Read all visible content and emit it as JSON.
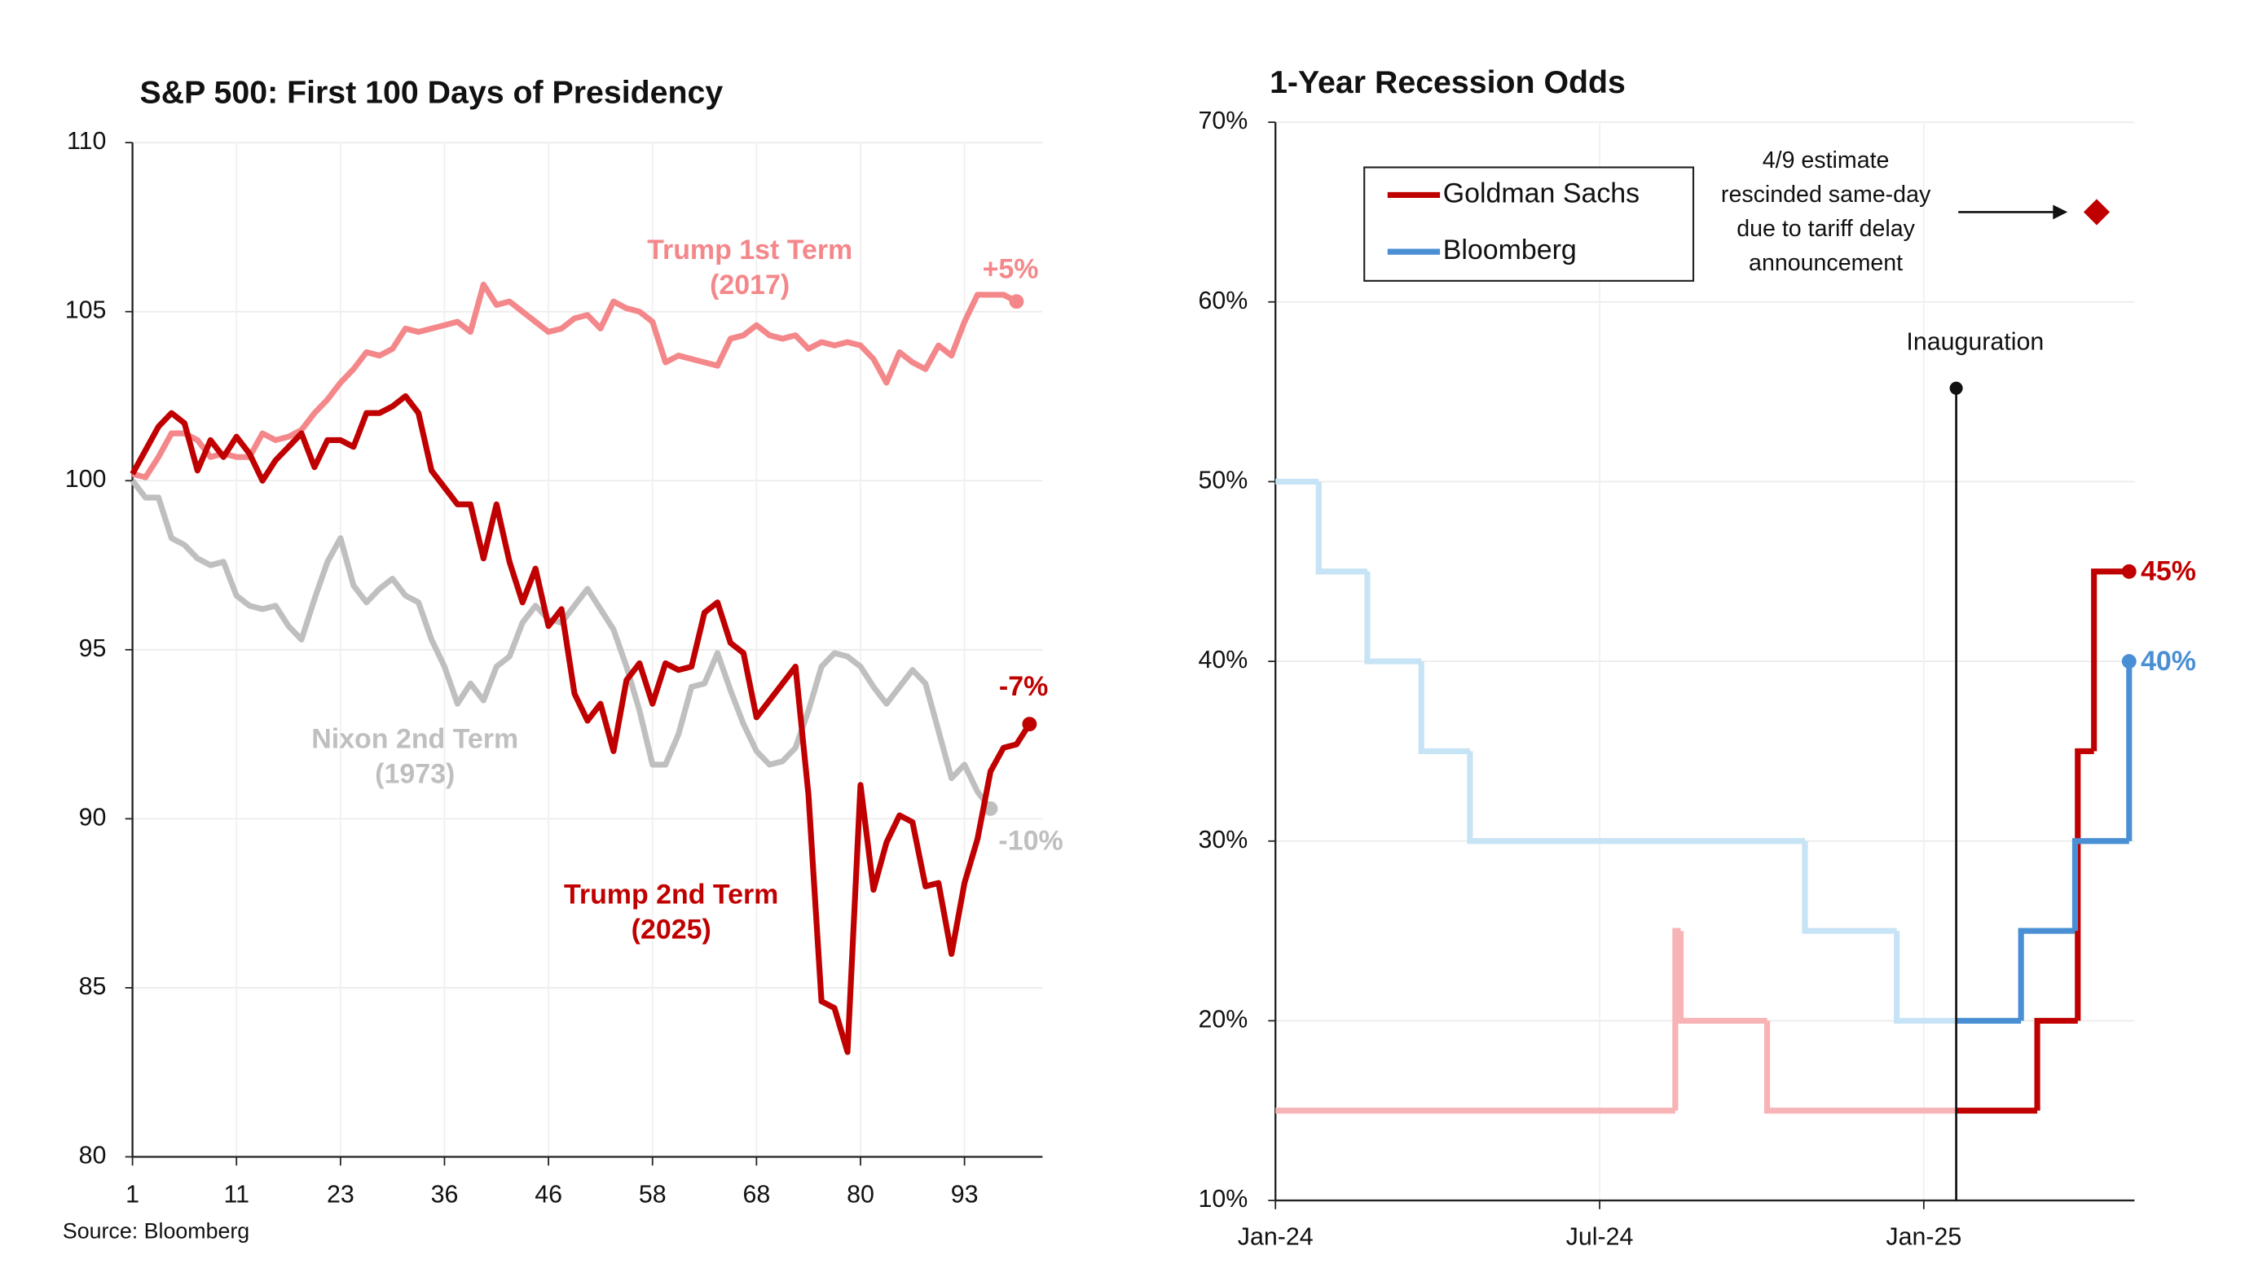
{
  "chart_data": [
    {
      "type": "line",
      "title": "S&P 500: First 100 Days of Presidency",
      "source": "Source: Bloomberg",
      "x": [
        0,
        1,
        2,
        3,
        4,
        5,
        6,
        7,
        8,
        9,
        10,
        11,
        12,
        13,
        14,
        15,
        16,
        17,
        18,
        19,
        20,
        21,
        22,
        23,
        24,
        25,
        26,
        27,
        28,
        29,
        30,
        31,
        32,
        33,
        34,
        35,
        36,
        37,
        38,
        39,
        40,
        41,
        42,
        43,
        44,
        45,
        46,
        47,
        48,
        49,
        50,
        51,
        52,
        53,
        54,
        55,
        56,
        57,
        58,
        59,
        60,
        61,
        62,
        63,
        64,
        65,
        66,
        67,
        68,
        69
      ],
      "xlim": [
        0,
        70
      ],
      "xticks": [
        {
          "value": 0,
          "label": "1"
        },
        {
          "value": 8,
          "label": "11"
        },
        {
          "value": 16,
          "label": "23"
        },
        {
          "value": 24,
          "label": "36"
        },
        {
          "value": 32,
          "label": "46"
        },
        {
          "value": 40,
          "label": "58"
        },
        {
          "value": 48,
          "label": "68"
        },
        {
          "value": 56,
          "label": "80"
        },
        {
          "value": 64,
          "label": "93"
        }
      ],
      "ylim": [
        80,
        110
      ],
      "yticks": [
        80,
        85,
        90,
        95,
        100,
        105,
        110
      ],
      "grid": true,
      "series": [
        {
          "name": "Trump 1st Term",
          "period": "(2017)",
          "color": "#f4878a",
          "end_label": "+5%",
          "values": [
            100.2,
            100.1,
            100.7,
            101.4,
            101.4,
            101.2,
            100.7,
            100.8,
            100.7,
            100.7,
            101.4,
            101.2,
            101.3,
            101.5,
            102.0,
            102.4,
            102.9,
            103.3,
            103.8,
            103.7,
            103.9,
            104.5,
            104.4,
            104.5,
            104.6,
            104.7,
            104.4,
            105.8,
            105.2,
            105.3,
            105.0,
            104.7,
            104.4,
            104.5,
            104.8,
            104.9,
            104.5,
            105.3,
            105.1,
            105.0,
            104.7,
            103.5,
            103.7,
            103.6,
            103.5,
            103.4,
            104.2,
            104.3,
            104.6,
            104.3,
            104.2,
            104.3,
            103.9,
            104.1,
            104.0,
            104.1,
            104.0,
            103.6,
            102.9,
            103.8,
            103.5,
            103.3,
            104.0,
            103.7,
            104.7,
            105.5,
            105.5,
            105.5,
            105.3,
            null
          ]
        },
        {
          "name": "Nixon 2nd Term",
          "period": "(1973)",
          "color": "#bfbfbf",
          "end_label": "-10%",
          "values": [
            100.0,
            99.5,
            99.5,
            98.3,
            98.1,
            97.7,
            97.5,
            97.6,
            96.6,
            96.3,
            96.2,
            96.3,
            95.7,
            95.3,
            96.5,
            97.6,
            98.3,
            96.9,
            96.4,
            96.8,
            97.1,
            96.6,
            96.4,
            95.3,
            94.5,
            93.4,
            94.0,
            93.5,
            94.5,
            94.8,
            95.8,
            96.3,
            95.9,
            95.8,
            96.3,
            96.8,
            96.2,
            95.6,
            94.5,
            93.2,
            91.6,
            91.6,
            92.5,
            93.9,
            94.0,
            94.9,
            93.8,
            92.8,
            92.0,
            91.6,
            91.7,
            92.1,
            93.2,
            94.5,
            94.9,
            94.8,
            94.5,
            93.9,
            93.4,
            93.9,
            94.4,
            94.0,
            92.6,
            91.2,
            91.6,
            90.8,
            90.3,
            null,
            null,
            null
          ]
        },
        {
          "name": "Trump 2nd Term",
          "period": "(2025)",
          "color": "#c00000",
          "end_label": "-7%",
          "values": [
            100.2,
            100.9,
            101.6,
            102.0,
            101.7,
            100.3,
            101.2,
            100.7,
            101.3,
            100.8,
            100.0,
            100.6,
            101.0,
            101.4,
            100.4,
            101.2,
            101.2,
            101.0,
            102.0,
            102.0,
            102.2,
            102.5,
            102.0,
            100.3,
            99.8,
            99.3,
            99.3,
            97.7,
            99.3,
            97.6,
            96.4,
            97.4,
            95.7,
            96.2,
            93.7,
            92.9,
            93.4,
            92.0,
            94.1,
            94.6,
            93.4,
            94.6,
            94.4,
            94.5,
            96.1,
            96.4,
            95.2,
            94.9,
            93.0,
            93.5,
            94.0,
            94.5,
            90.7,
            84.6,
            84.4,
            83.1,
            91.0,
            87.9,
            89.3,
            90.1,
            89.9,
            88.0,
            88.1,
            86.0,
            88.1,
            89.4,
            91.4,
            92.1,
            92.2,
            92.8
          ]
        }
      ]
    },
    {
      "type": "step",
      "title": "1-Year Recession Odds",
      "xlim": [
        0,
        15.9
      ],
      "xticks": [
        {
          "value": 0,
          "label": "Jan-24"
        },
        {
          "value": 6,
          "label": "Jul-24"
        },
        {
          "value": 12,
          "label": "Jan-25"
        }
      ],
      "ylim": [
        10,
        70
      ],
      "yticks": [
        {
          "value": 10,
          "label": "10%"
        },
        {
          "value": 20,
          "label": "20%"
        },
        {
          "value": 30,
          "label": "30%"
        },
        {
          "value": 40,
          "label": "40%"
        },
        {
          "value": 50,
          "label": "50%"
        },
        {
          "value": 60,
          "label": "60%"
        },
        {
          "value": 70,
          "label": "70%"
        }
      ],
      "grid": true,
      "legend": "upper left",
      "event": {
        "label": "Inauguration",
        "x": 12.6,
        "y": 55.2
      },
      "annotation": {
        "lines": [
          "4/9 estimate",
          "rescinded same-day",
          "due to tariff delay",
          "announcement"
        ],
        "x": 15.2,
        "value": 65,
        "color": "#c00000"
      },
      "series": [
        {
          "name": "Goldman Sachs",
          "color": "#c00000",
          "faded_color": "#f7b3b5",
          "end_label": "45%",
          "x": [
            0,
            7.4,
            7.5,
            9.1,
            14.1,
            14.85,
            15.15,
            15.8
          ],
          "values": [
            15,
            25,
            20,
            15,
            20,
            35,
            45,
            45
          ]
        },
        {
          "name": "Bloomberg",
          "color": "#4a8fd4",
          "faded_color": "#c6e4f5",
          "end_label": "40%",
          "x": [
            0,
            0.8,
            1.7,
            2.7,
            3.6,
            9.8,
            11.5,
            13.8,
            14.8,
            15.8
          ],
          "values": [
            50,
            45,
            40,
            35,
            30,
            25,
            20,
            25,
            30,
            40
          ]
        }
      ]
    }
  ]
}
